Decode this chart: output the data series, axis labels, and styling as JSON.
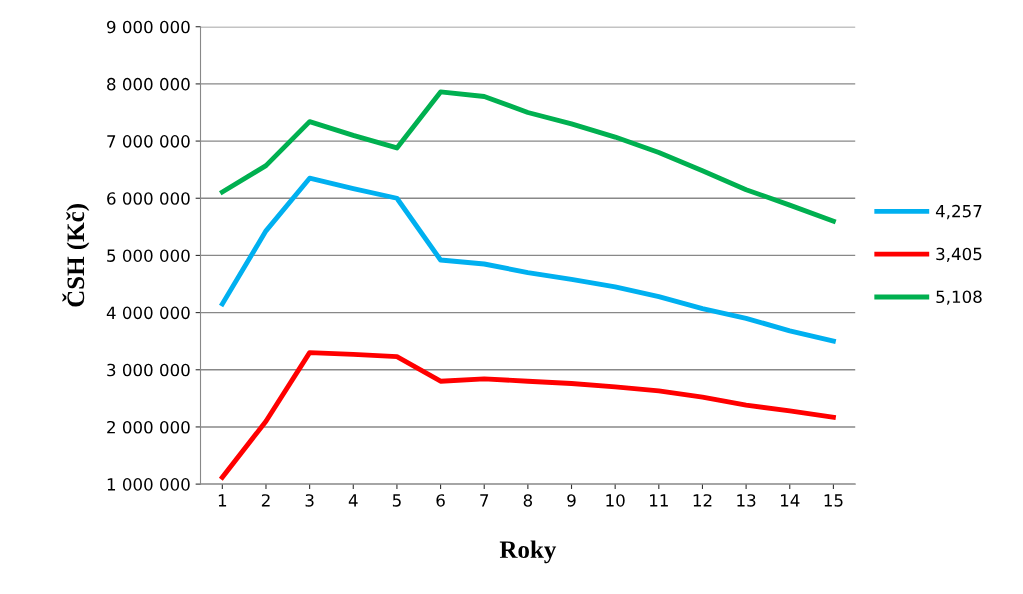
{
  "chart_data": {
    "type": "line",
    "xlabel": "Roky",
    "ylabel": "ČSH (Kč)",
    "categories": [
      "1",
      "2",
      "3",
      "4",
      "5",
      "6",
      "7",
      "8",
      "9",
      "10",
      "11",
      "12",
      "13",
      "14",
      "15"
    ],
    "series": [
      {
        "name": "4,257",
        "color": "#00b0f0",
        "values": [
          4150000,
          5430000,
          6350000,
          6170000,
          6000000,
          4920000,
          4850000,
          4700000,
          4580000,
          4450000,
          4280000,
          4070000,
          3900000,
          3680000,
          3500000
        ]
      },
      {
        "name": "3,405",
        "color": "#ff0000",
        "values": [
          1120000,
          2100000,
          3300000,
          3270000,
          3230000,
          2800000,
          2840000,
          2800000,
          2760000,
          2700000,
          2630000,
          2520000,
          2380000,
          2280000,
          2170000
        ]
      },
      {
        "name": "5,108",
        "color": "#00b050",
        "values": [
          6110000,
          6570000,
          7340000,
          7100000,
          6880000,
          7860000,
          7780000,
          7500000,
          7300000,
          7070000,
          6800000,
          6480000,
          6150000,
          5880000,
          5600000
        ]
      }
    ],
    "ylim": [
      1000000,
      9000000
    ],
    "yticks": [
      {
        "value": 1000000,
        "label": "1 000 000"
      },
      {
        "value": 2000000,
        "label": "2 000 000"
      },
      {
        "value": 3000000,
        "label": "3 000 000"
      },
      {
        "value": 4000000,
        "label": "4 000 000"
      },
      {
        "value": 5000000,
        "label": "5 000 000"
      },
      {
        "value": 6000000,
        "label": "6 000 000"
      },
      {
        "value": 7000000,
        "label": "7 000 000"
      },
      {
        "value": 8000000,
        "label": "8 000 000"
      },
      {
        "value": 9000000,
        "label": "9 000 000"
      }
    ],
    "grid": "y",
    "legend": "right",
    "marker": "none",
    "line_style": "solid"
  }
}
